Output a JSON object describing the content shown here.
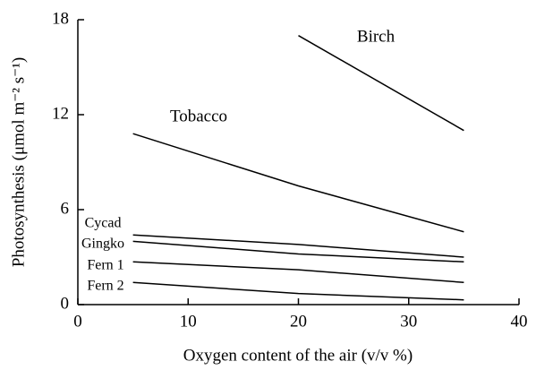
{
  "chart_data": {
    "type": "line",
    "xlabel": "Oxygen content of the air (v/v %)",
    "ylabel": "Photosynthesis (μmol m⁻² s⁻¹)",
    "x": [
      5,
      20,
      35
    ],
    "series": [
      {
        "name": "Birch",
        "color": "#000000",
        "values": [
          null,
          17,
          11
        ]
      },
      {
        "name": "Tobacco",
        "color": "#000000",
        "values": [
          10.8,
          7.5,
          4.6
        ]
      },
      {
        "name": "Cycad",
        "color": "#000000",
        "values": [
          4.4,
          3.8,
          3.0
        ]
      },
      {
        "name": "Gingko",
        "color": "#000000",
        "values": [
          4.0,
          3.2,
          2.7
        ]
      },
      {
        "name": "Fern 1",
        "color": "#000000",
        "values": [
          2.7,
          2.2,
          1.4
        ]
      },
      {
        "name": "Fern 2",
        "color": "#000000",
        "values": [
          1.4,
          0.7,
          0.3
        ]
      }
    ],
    "xlim": [
      0,
      40
    ],
    "xticks": [
      0,
      10,
      20,
      30,
      40
    ],
    "ylim": [
      0,
      18
    ],
    "yticks": [
      0,
      6,
      12,
      18
    ]
  }
}
